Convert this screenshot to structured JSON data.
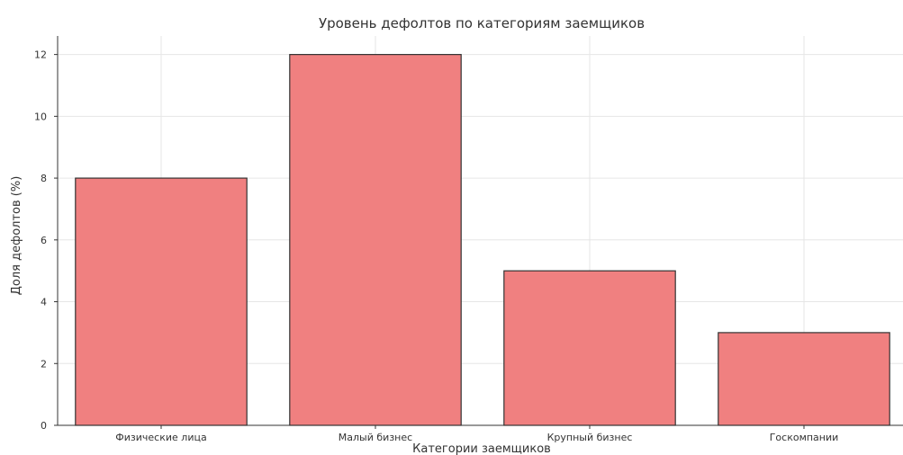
{
  "chart_data": {
    "type": "bar",
    "title": "Уровень дефолтов по категориям заемщиков",
    "xlabel": "Категории заемщиков",
    "ylabel": "Доля дефолтов (%)",
    "categories": [
      "Физические лица",
      "Малый бизнес",
      "Крупный бизнес",
      "Госкомпании"
    ],
    "values": [
      8,
      12,
      5,
      3
    ],
    "ylim": [
      0,
      12.6
    ],
    "yticks": [
      0,
      2,
      4,
      6,
      8,
      10,
      12
    ],
    "grid": true,
    "legend": "none",
    "bar_color": "#f08080",
    "edge_color": "#333333"
  }
}
